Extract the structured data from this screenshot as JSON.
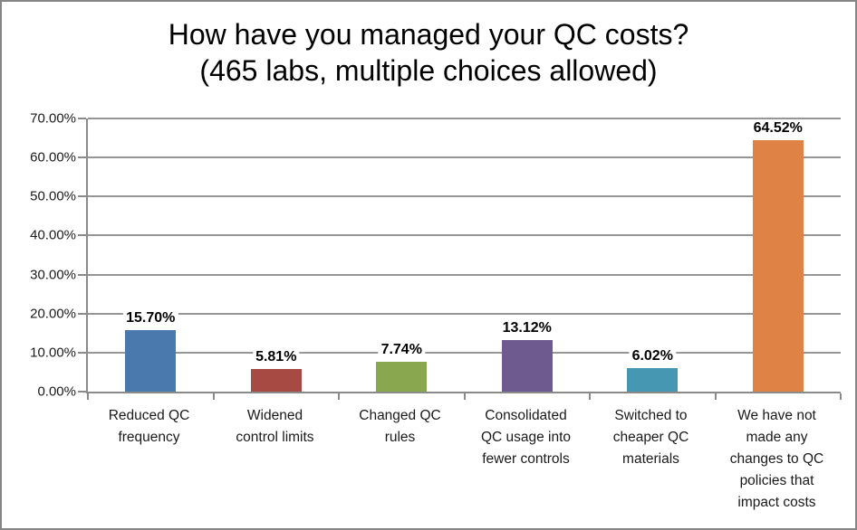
{
  "title": {
    "line1": "How have you managed your QC costs?",
    "line2": "(465 labs, multiple choices allowed)"
  },
  "chart_data": {
    "type": "bar",
    "title": "How have you managed your QC costs? (465 labs, multiple choices allowed)",
    "subtitle": "(465 labs, multiple choices allowed)",
    "respondents": "465 labs",
    "categories": [
      "Reduced QC frequency",
      "Widened control limits",
      "Changed QC rules",
      "Consolidated QC usage into fewer controls",
      "Switched to cheaper QC materials",
      "We have not made any changes to QC policies that impact costs"
    ],
    "values": [
      15.7,
      5.81,
      7.74,
      13.12,
      6.02,
      64.52
    ],
    "value_labels": [
      "15.70%",
      "5.81%",
      "7.74%",
      "13.12%",
      "6.02%",
      "64.52%"
    ],
    "bar_colors": [
      "#4A79AE",
      "#A84A44",
      "#89A74F",
      "#6E5A8E",
      "#4697B1",
      "#DE8345"
    ],
    "xlabel": "",
    "ylabel": "",
    "ylim": [
      0,
      70
    ],
    "y_tick_labels_top_to_bottom": [
      "70.00%",
      "60.00%",
      "50.00%",
      "40.00%",
      "30.00%",
      "20.00%",
      "10.00%",
      "0.00%"
    ],
    "grid": true,
    "legend_position": "none"
  },
  "colors": {
    "gridline": "#969696",
    "axis": "#8a8a8a",
    "outer_border": "#868686",
    "text": "#000000",
    "tick_text": "#1a1a1a",
    "background": "#ffffff",
    "value_label_fill": "#ffffff"
  }
}
